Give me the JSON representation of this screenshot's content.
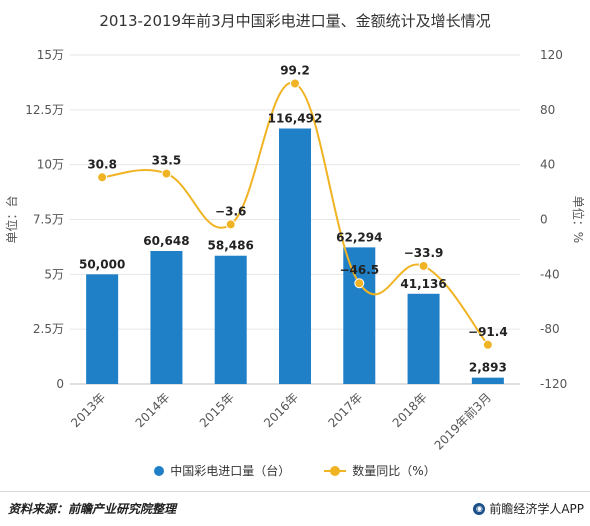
{
  "title": "2013-2019年前3月中国彩电进口量、金额统计及增长情况",
  "source": "资料来源：前瞻产业研究院整理",
  "brand": "前瞻经济学人APP",
  "colors": {
    "bar": "#1f80c8",
    "line": "#f0b323",
    "grid": "#e6e6e6",
    "axis_text": "#555555"
  },
  "legend": [
    "中国彩电进口量（台）",
    "数量同比（%）"
  ],
  "chart_data": {
    "type": "bar",
    "title": "2013-2019年前3月中国彩电进口量、金额统计及增长情况",
    "categories": [
      "2013年",
      "2014年",
      "2015年",
      "2016年",
      "2017年",
      "2018年",
      "2019年前3月"
    ],
    "series": [
      {
        "name": "中国彩电进口量（台）",
        "type": "bar",
        "axis": "left",
        "values": [
          50000,
          60648,
          58486,
          116492,
          62294,
          41136,
          2893
        ],
        "labels": [
          "50,000",
          "60,648",
          "58,486",
          "116,492",
          "62,294",
          "41,136",
          "2,893"
        ]
      },
      {
        "name": "数量同比（%）",
        "type": "line",
        "axis": "right",
        "values": [
          30.8,
          33.5,
          -3.6,
          99.2,
          -46.5,
          -33.9,
          -91.4
        ],
        "labels": [
          "30.8",
          "33.5",
          "−3.6",
          "99.2",
          "−46.5",
          "−33.9",
          "−91.4"
        ]
      }
    ],
    "left_axis": {
      "label": "单位：台",
      "range": [
        0,
        150000
      ],
      "ticks": [
        "0",
        "2.5万",
        "5万",
        "7.5万",
        "10万",
        "12.5万",
        "15万"
      ]
    },
    "right_axis": {
      "label": "单位：%",
      "range": [
        -120,
        120
      ],
      "ticks": [
        "-120",
        "-80",
        "-40",
        "0",
        "40",
        "80",
        "120"
      ]
    },
    "grid": true,
    "legend_position": "bottom"
  }
}
